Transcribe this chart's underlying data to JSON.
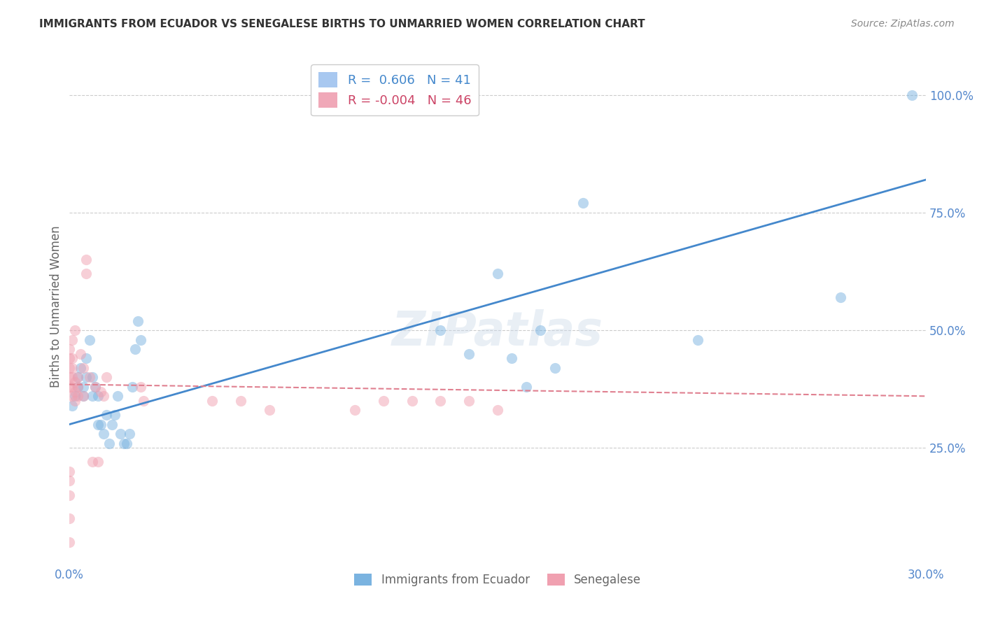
{
  "title": "IMMIGRANTS FROM ECUADOR VS SENEGALESE BIRTHS TO UNMARRIED WOMEN CORRELATION CHART",
  "source": "Source: ZipAtlas.com",
  "ylabel": "Births to Unmarried Women",
  "ytick_labels": [
    "25.0%",
    "50.0%",
    "75.0%",
    "100.0%"
  ],
  "ytick_values": [
    0.25,
    0.5,
    0.75,
    1.0
  ],
  "xlim": [
    0.0,
    0.3
  ],
  "ylim": [
    0.0,
    1.1
  ],
  "legend_top": [
    {
      "label": "R =  0.606   N = 41",
      "patch_color": "#a8c8f0",
      "text_color": "#4488cc"
    },
    {
      "label": "R = -0.004   N = 46",
      "patch_color": "#f0a8b8",
      "text_color": "#cc4466"
    }
  ],
  "legend_bottom": [
    {
      "label": "Immigrants from Ecuador",
      "patch_color": "#7ab3e0"
    },
    {
      "label": "Senegalese",
      "patch_color": "#f0a0b0"
    }
  ],
  "blue_scatter_x": [
    0.001,
    0.002,
    0.003,
    0.003,
    0.004,
    0.005,
    0.005,
    0.006,
    0.006,
    0.007,
    0.008,
    0.008,
    0.009,
    0.01,
    0.01,
    0.011,
    0.012,
    0.013,
    0.014,
    0.015,
    0.016,
    0.017,
    0.018,
    0.019,
    0.02,
    0.021,
    0.022,
    0.023,
    0.024,
    0.025,
    0.13,
    0.14,
    0.15,
    0.155,
    0.16,
    0.165,
    0.17,
    0.18,
    0.22,
    0.27,
    0.295
  ],
  "blue_scatter_y": [
    0.34,
    0.36,
    0.38,
    0.4,
    0.42,
    0.38,
    0.36,
    0.4,
    0.44,
    0.48,
    0.36,
    0.4,
    0.38,
    0.36,
    0.3,
    0.3,
    0.28,
    0.32,
    0.26,
    0.3,
    0.32,
    0.36,
    0.28,
    0.26,
    0.26,
    0.28,
    0.38,
    0.46,
    0.52,
    0.48,
    0.5,
    0.45,
    0.62,
    0.44,
    0.38,
    0.5,
    0.42,
    0.77,
    0.48,
    0.57,
    1.0
  ],
  "pink_scatter_x": [
    0.0,
    0.0,
    0.0,
    0.0,
    0.0,
    0.0,
    0.0,
    0.0,
    0.0,
    0.0,
    0.001,
    0.001,
    0.001,
    0.001,
    0.001,
    0.001,
    0.002,
    0.002,
    0.002,
    0.002,
    0.003,
    0.003,
    0.003,
    0.004,
    0.005,
    0.005,
    0.006,
    0.006,
    0.007,
    0.008,
    0.009,
    0.01,
    0.011,
    0.012,
    0.013,
    0.025,
    0.026,
    0.05,
    0.06,
    0.07,
    0.1,
    0.11,
    0.12,
    0.13,
    0.14,
    0.15
  ],
  "pink_scatter_y": [
    0.05,
    0.1,
    0.15,
    0.18,
    0.2,
    0.38,
    0.4,
    0.42,
    0.44,
    0.46,
    0.36,
    0.38,
    0.4,
    0.42,
    0.44,
    0.48,
    0.35,
    0.37,
    0.39,
    0.5,
    0.36,
    0.38,
    0.4,
    0.45,
    0.42,
    0.36,
    0.62,
    0.65,
    0.4,
    0.22,
    0.38,
    0.22,
    0.37,
    0.36,
    0.4,
    0.38,
    0.35,
    0.35,
    0.35,
    0.33,
    0.33,
    0.35,
    0.35,
    0.35,
    0.35,
    0.33
  ],
  "blue_line_x": [
    0.0,
    0.3
  ],
  "blue_line_y": [
    0.3,
    0.82
  ],
  "pink_line_x": [
    0.0,
    0.3
  ],
  "pink_line_y": [
    0.385,
    0.36
  ],
  "watermark": "ZIPatlas",
  "scatter_size": 120,
  "scatter_alpha": 0.5,
  "blue_color": "#7ab3e0",
  "pink_color": "#f0a0b0",
  "blue_line_color": "#4488cc",
  "pink_line_color": "#e08090",
  "grid_color": "#cccccc",
  "title_color": "#333333",
  "axis_label_color": "#5588cc",
  "background_color": "#ffffff"
}
